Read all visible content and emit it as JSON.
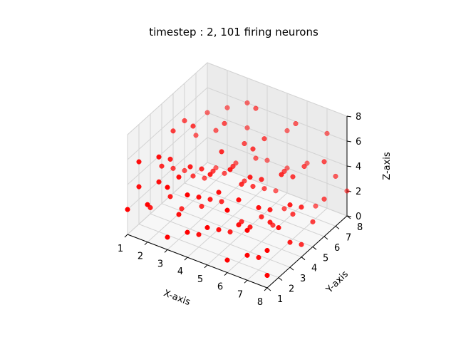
{
  "chart_data": {
    "type": "scatter",
    "title": "timestep : 2, 101 firing neurons",
    "xlabel": "X-axis",
    "ylabel": "Y-axis",
    "zlabel": "Z-axis",
    "xlim": [
      1,
      8
    ],
    "ylim": [
      1,
      8
    ],
    "zlim": [
      0,
      8
    ],
    "xticks": [
      1,
      2,
      3,
      4,
      5,
      6,
      7,
      8
    ],
    "yticks": [
      1,
      2,
      3,
      4,
      5,
      6,
      7,
      8
    ],
    "zticks": [
      0,
      2,
      4,
      6,
      8
    ],
    "grid": true,
    "point_color": "#ff0000",
    "points": [
      [
        1,
        1,
        2
      ],
      [
        1,
        2,
        3
      ],
      [
        1,
        4,
        3
      ],
      [
        1,
        5,
        5
      ],
      [
        1,
        6,
        5
      ],
      [
        2,
        1,
        3
      ],
      [
        2,
        2,
        4
      ],
      [
        2,
        3,
        2
      ],
      [
        2,
        5,
        6
      ],
      [
        2,
        7,
        4
      ],
      [
        3,
        1,
        1
      ],
      [
        3,
        2,
        2
      ],
      [
        3,
        4,
        1
      ],
      [
        3,
        5,
        3
      ],
      [
        3,
        6,
        6
      ],
      [
        3,
        8,
        4
      ],
      [
        4,
        1,
        2
      ],
      [
        4,
        2,
        1
      ],
      [
        4,
        3,
        3
      ],
      [
        4,
        4,
        2
      ],
      [
        4,
        5,
        4
      ],
      [
        4,
        6,
        5
      ],
      [
        4,
        7,
        7
      ],
      [
        5,
        1,
        3
      ],
      [
        5,
        2,
        2
      ],
      [
        5,
        3,
        1
      ],
      [
        5,
        4,
        4
      ],
      [
        5,
        5,
        3
      ],
      [
        5,
        6,
        6
      ],
      [
        5,
        8,
        5
      ],
      [
        6,
        1,
        1
      ],
      [
        6,
        2,
        3
      ],
      [
        6,
        3,
        2
      ],
      [
        6,
        4,
        5
      ],
      [
        6,
        6,
        4
      ],
      [
        6,
        7,
        7
      ],
      [
        7,
        1,
        2
      ],
      [
        7,
        2,
        1
      ],
      [
        7,
        3,
        4
      ],
      [
        7,
        5,
        2
      ],
      [
        7,
        6,
        5
      ],
      [
        7,
        8,
        6
      ],
      [
        8,
        1,
        3
      ],
      [
        8,
        2,
        4
      ],
      [
        8,
        3,
        2
      ],
      [
        8,
        4,
        1
      ],
      [
        8,
        6,
        3
      ],
      [
        8,
        7,
        4
      ],
      [
        2,
        4,
        0.2
      ],
      [
        3,
        3,
        5
      ],
      [
        4,
        8,
        2
      ],
      [
        5,
        7,
        1
      ],
      [
        6,
        5,
        0.5
      ],
      [
        7,
        4,
        6
      ],
      [
        2,
        6,
        1
      ],
      [
        1,
        3,
        0.5
      ],
      [
        3,
        7,
        2
      ],
      [
        4,
        4,
        6
      ],
      [
        5,
        2,
        5
      ],
      [
        6,
        8,
        3
      ],
      [
        8,
        5,
        2
      ],
      [
        7,
        7,
        1
      ],
      [
        2,
        8,
        5
      ],
      [
        1,
        7,
        3
      ],
      [
        3,
        8,
        6
      ],
      [
        4,
        6,
        2
      ],
      [
        5,
        5,
        6
      ],
      [
        6,
        1,
        5
      ],
      [
        8,
        8,
        2
      ],
      [
        7,
        1,
        4
      ],
      [
        1,
        5,
        2
      ],
      [
        2,
        2,
        6
      ],
      [
        3,
        4,
        4
      ],
      [
        4,
        2,
        4
      ],
      [
        5,
        3,
        6
      ],
      [
        6,
        6,
        1
      ],
      [
        7,
        2,
        5
      ],
      [
        8,
        1,
        1
      ],
      [
        1,
        8,
        4
      ],
      [
        2,
        3,
        5
      ],
      [
        3,
        1,
        5
      ],
      [
        4,
        3,
        5
      ],
      [
        5,
        6,
        2
      ],
      [
        6,
        2,
        5
      ],
      [
        7,
        3,
        3
      ],
      [
        8,
        3,
        5
      ],
      [
        1,
        2,
        5
      ],
      [
        2,
        5,
        2
      ],
      [
        3,
        6,
        2
      ],
      [
        4,
        1,
        5
      ],
      [
        5,
        4,
        1
      ],
      [
        6,
        3,
        6
      ],
      [
        7,
        5,
        5
      ],
      [
        8,
        4,
        4
      ],
      [
        1,
        6,
        1
      ],
      [
        2,
        7,
        1
      ],
      [
        3,
        2,
        5
      ],
      [
        4,
        7,
        3
      ],
      [
        5,
        8,
        2
      ],
      [
        6,
        4,
        2
      ],
      [
        8,
        6,
        6
      ]
    ]
  }
}
